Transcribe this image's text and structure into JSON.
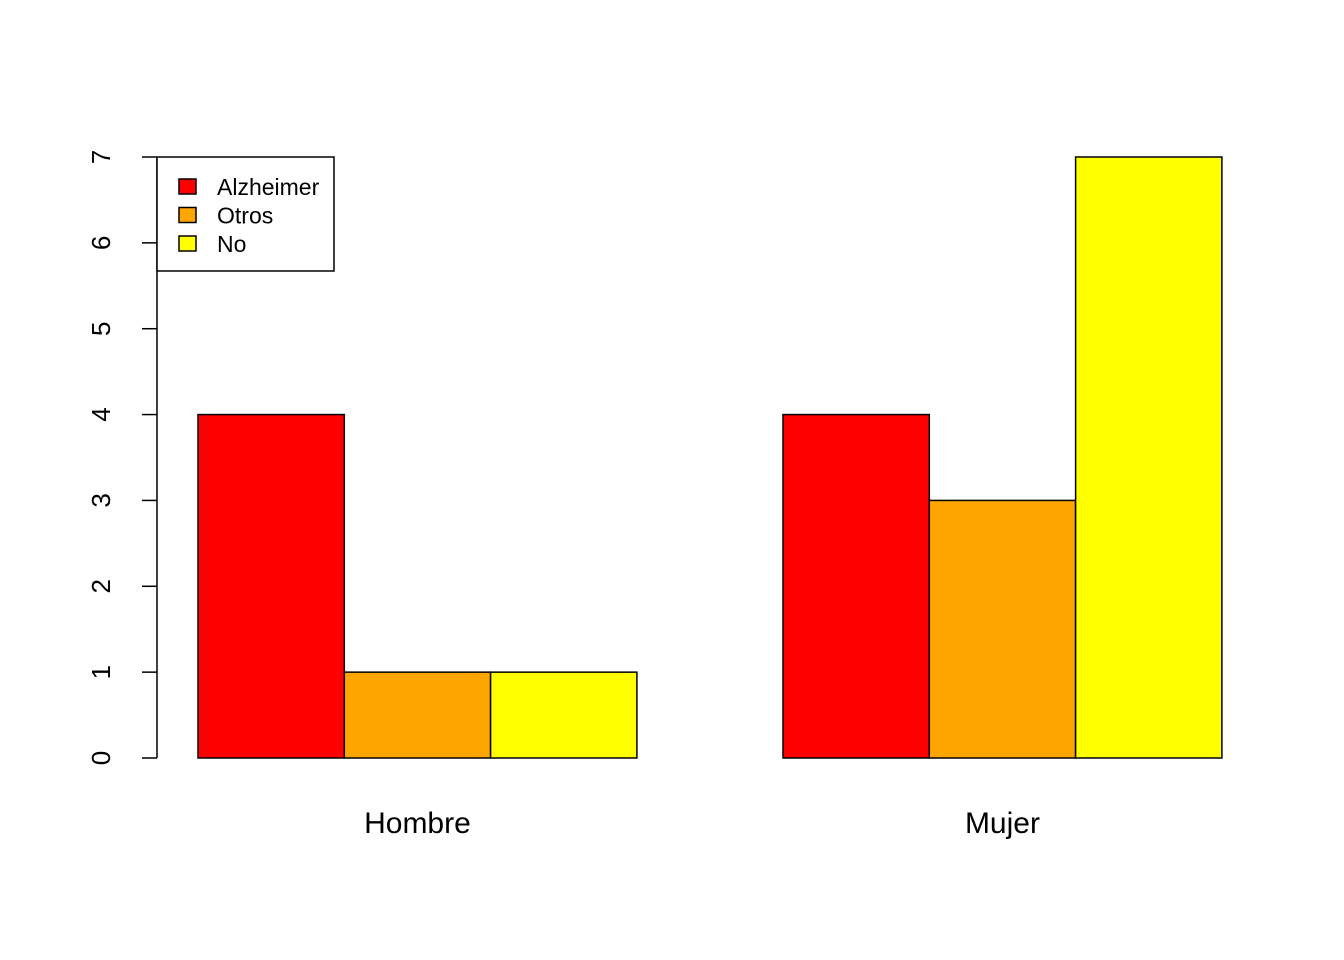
{
  "chart_data": {
    "type": "bar",
    "mode": "grouped",
    "title": "",
    "xlabel": "",
    "ylabel": "",
    "categories": [
      "Hombre",
      "Mujer"
    ],
    "series": [
      {
        "name": "Alzheimer",
        "color": "#ff0000",
        "values": [
          4,
          4
        ]
      },
      {
        "name": "Otros",
        "color": "#ffa500",
        "values": [
          1,
          3
        ]
      },
      {
        "name": "No",
        "color": "#ffff00",
        "values": [
          1,
          7
        ]
      }
    ],
    "ylim": [
      0,
      7
    ],
    "yticks": [
      "0",
      "1",
      "2",
      "3",
      "4",
      "5",
      "6",
      "7"
    ],
    "grid": false,
    "legend_position": "top-left"
  }
}
